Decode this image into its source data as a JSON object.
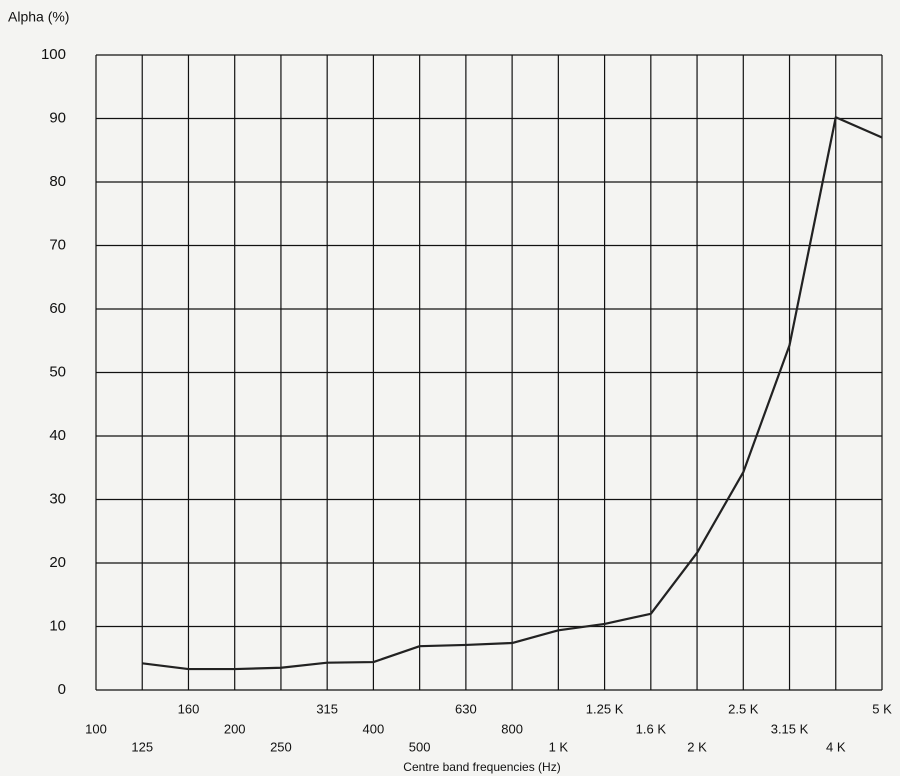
{
  "chart_data": {
    "type": "line",
    "y_label": "Alpha (%)",
    "x_label": "Centre band frequencies (Hz)",
    "categories": [
      "100",
      "125",
      "160",
      "200",
      "250",
      "315",
      "400",
      "500",
      "630",
      "800",
      "1 K",
      "1.25 K",
      "1.6 K",
      "2 K",
      "2.5 K",
      "3.15 K",
      "4 K",
      "5 K"
    ],
    "values": [
      null,
      4.2,
      3.3,
      3.3,
      3.5,
      4.3,
      4.4,
      6.9,
      7.1,
      7.4,
      9.4,
      10.4,
      12,
      21.6,
      34.3,
      54.3,
      90.2,
      87
    ],
    "color": "#222222",
    "ylim": [
      0,
      100
    ],
    "yticks": [
      0,
      10,
      20,
      30,
      40,
      50,
      60,
      70,
      80,
      90,
      100
    ],
    "grid": true
  }
}
